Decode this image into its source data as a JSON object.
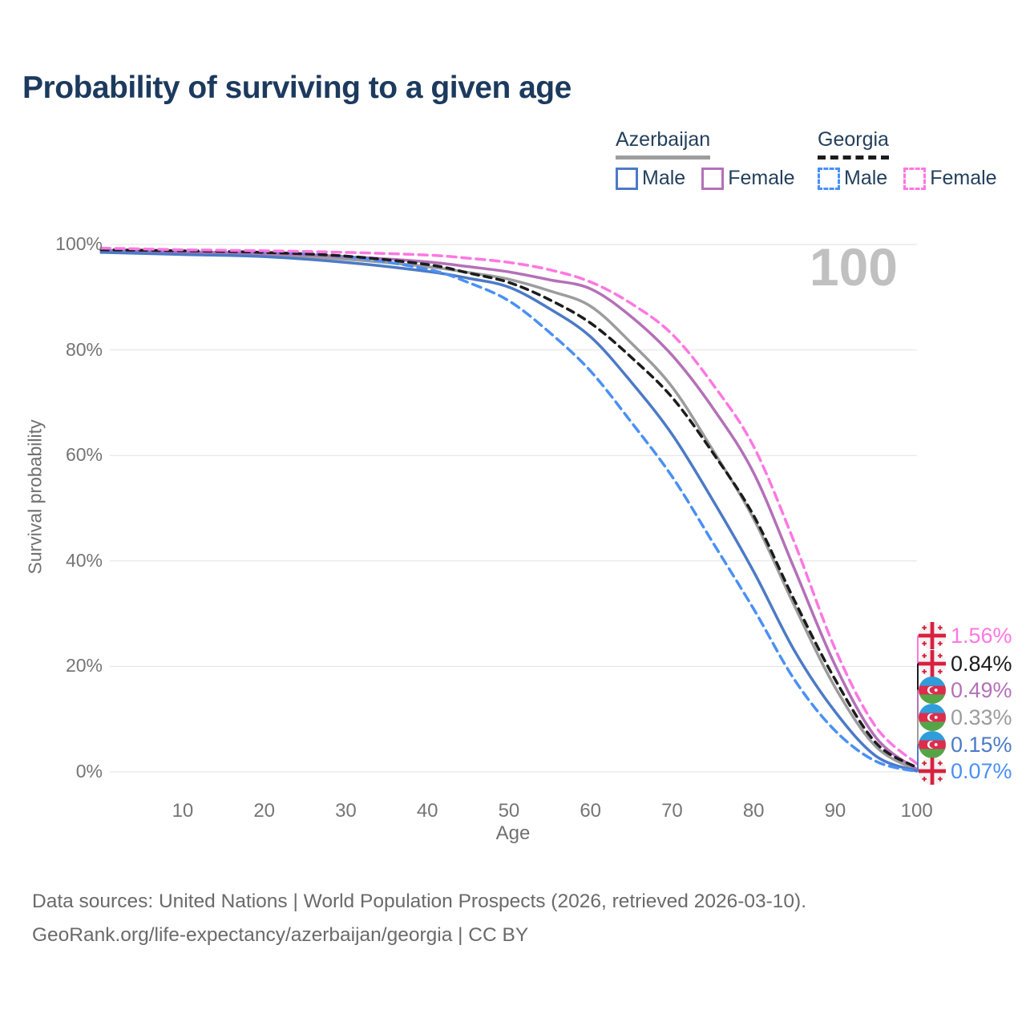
{
  "header": {
    "title": "Probability of surviving to a given age"
  },
  "legend": {
    "groups": [
      {
        "label": "Azerbaijan",
        "line_style": "solid",
        "line_color": "#9e9e9e",
        "items": [
          {
            "label": "Male",
            "color": "#4c7ac6",
            "style": "solid"
          },
          {
            "label": "Female",
            "color": "#b470b8",
            "style": "solid"
          }
        ]
      },
      {
        "label": "Georgia",
        "line_style": "dashed",
        "line_color": "#1c1c1c",
        "items": [
          {
            "label": "Male",
            "color": "#4a90f5",
            "style": "dashed"
          },
          {
            "label": "Female",
            "color": "#ff77e1",
            "style": "dashed"
          }
        ]
      }
    ]
  },
  "watermark": "100",
  "chart_data": {
    "type": "line",
    "title": "Probability of surviving to a given age",
    "xlabel": "Age",
    "ylabel": "Survival probability",
    "xlim": [
      0,
      100
    ],
    "ylim": [
      0,
      100
    ],
    "x_ticks": [
      10,
      20,
      30,
      40,
      50,
      60,
      70,
      80,
      90,
      100
    ],
    "y_ticks": [
      0,
      20,
      40,
      60,
      80,
      100
    ],
    "y_tick_suffix": "%",
    "grid": "horizontal",
    "x": [
      0,
      10,
      20,
      30,
      40,
      45,
      50,
      55,
      60,
      65,
      70,
      75,
      80,
      85,
      90,
      95,
      100
    ],
    "series": [
      {
        "name": "Azerbaijan Both sexes",
        "country": "Azerbaijan",
        "sex": "Both",
        "style": "solid",
        "color": "#9c9c9c",
        "end_value_pct": 0.33,
        "values": [
          98.7,
          98.4,
          98.0,
          97.2,
          95.8,
          94.7,
          93.4,
          91.2,
          88.3,
          81.3,
          73.0,
          61.0,
          48.0,
          31.5,
          16.0,
          4.8,
          0.33
        ]
      },
      {
        "name": "Azerbaijan Female",
        "country": "Azerbaijan",
        "sex": "Female",
        "style": "solid",
        "color": "#b470b8",
        "end_value_pct": 0.49,
        "values": [
          98.9,
          98.6,
          98.3,
          97.7,
          96.7,
          95.8,
          94.8,
          93.3,
          91.6,
          86.3,
          79.0,
          69.0,
          56.7,
          38.5,
          20.2,
          6.5,
          0.49
        ]
      },
      {
        "name": "Azerbaijan Male",
        "country": "Azerbaijan",
        "sex": "Male",
        "style": "solid",
        "color": "#4c7ac6",
        "end_value_pct": 0.15,
        "values": [
          98.5,
          98.1,
          97.7,
          96.6,
          94.9,
          93.6,
          91.9,
          87.8,
          82.5,
          73.9,
          64.0,
          51.5,
          38.0,
          23.0,
          11.4,
          3.0,
          0.15
        ]
      },
      {
        "name": "Georgia Male",
        "country": "Georgia",
        "sex": "Male",
        "style": "dashed",
        "color": "#4a90f5",
        "end_value_pct": 0.07,
        "values": [
          99.1,
          98.9,
          98.6,
          97.7,
          95.3,
          92.8,
          89.3,
          83.3,
          76.0,
          66.3,
          56.0,
          43.5,
          30.9,
          17.5,
          7.8,
          2.0,
          0.07
        ]
      },
      {
        "name": "Georgia Both sexes",
        "country": "Georgia",
        "sex": "Both",
        "style": "dashed",
        "color": "#1c1c1c",
        "end_value_pct": 0.84,
        "values": [
          99.0,
          98.8,
          98.5,
          97.8,
          96.2,
          94.6,
          92.8,
          89.5,
          85.1,
          78.6,
          71.0,
          60.5,
          48.6,
          32.5,
          17.5,
          5.5,
          0.84
        ]
      },
      {
        "name": "Georgia Female",
        "country": "Georgia",
        "sex": "Female",
        "style": "dashed",
        "color": "#ff77e1",
        "end_value_pct": 1.56,
        "values": [
          99.3,
          99.0,
          98.8,
          98.5,
          98.0,
          97.4,
          96.6,
          95.2,
          92.9,
          88.8,
          83.0,
          73.5,
          61.7,
          43.5,
          23.3,
          8.5,
          1.56
        ]
      }
    ],
    "end_labels": [
      {
        "flag": "georgia",
        "text": "1.56%",
        "color": "#ff77e1",
        "series": "Georgia Female"
      },
      {
        "flag": "georgia",
        "text": "0.84%",
        "color": "#1c1c1c",
        "series": "Georgia Both sexes"
      },
      {
        "flag": "azerbaijan",
        "text": "0.49%",
        "color": "#b470b8",
        "series": "Azerbaijan Female"
      },
      {
        "flag": "azerbaijan",
        "text": "0.33%",
        "color": "#9c9c9c",
        "series": "Azerbaijan Both sexes"
      },
      {
        "flag": "azerbaijan",
        "text": "0.15%",
        "color": "#4c7ac6",
        "series": "Azerbaijan Male"
      },
      {
        "flag": "georgia",
        "text": "0.07%",
        "color": "#4a90f5",
        "series": "Georgia Male"
      }
    ]
  },
  "footer": {
    "line1": "Data sources: United Nations | World Population Prospects (2026, retrieved 2026-03-10).",
    "line2": "GeoRank.org/life-expectancy/azerbaijan/georgia | CC BY"
  }
}
